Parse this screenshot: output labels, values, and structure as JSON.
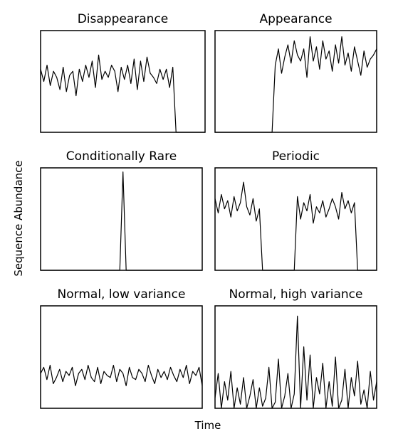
{
  "figure": {
    "xlabel": "Time",
    "ylabel": "Sequence Abundance"
  },
  "chart_data": [
    {
      "type": "line",
      "title": "Disappearance",
      "xlabel": "",
      "ylabel": "",
      "xlim": [
        0,
        51
      ],
      "ylim": [
        0,
        1
      ],
      "series": [
        {
          "values": [
            0.62,
            0.5,
            0.66,
            0.46,
            0.6,
            0.54,
            0.42,
            0.64,
            0.4,
            0.56,
            0.6,
            0.36,
            0.62,
            0.5,
            0.66,
            0.54,
            0.7,
            0.44,
            0.76,
            0.52,
            0.6,
            0.54,
            0.66,
            0.6,
            0.4,
            0.64,
            0.52,
            0.66,
            0.48,
            0.72,
            0.42,
            0.7,
            0.5,
            0.74,
            0.58,
            0.54,
            0.48,
            0.62,
            0.52,
            0.62,
            0.44,
            0.64,
            0,
            0,
            0,
            0,
            0,
            0,
            0,
            0,
            0,
            0
          ]
        }
      ]
    },
    {
      "type": "line",
      "title": "Appearance",
      "xlabel": "",
      "ylabel": "",
      "xlim": [
        0,
        51
      ],
      "ylim": [
        0,
        1
      ],
      "series": [
        {
          "values": [
            0,
            0,
            0,
            0,
            0,
            0,
            0,
            0,
            0,
            0,
            0,
            0,
            0,
            0,
            0,
            0,
            0,
            0,
            0,
            0.66,
            0.82,
            0.58,
            0.74,
            0.86,
            0.68,
            0.9,
            0.76,
            0.7,
            0.82,
            0.54,
            0.94,
            0.7,
            0.84,
            0.62,
            0.9,
            0.72,
            0.8,
            0.6,
            0.86,
            0.68,
            0.94,
            0.66,
            0.78,
            0.6,
            0.84,
            0.7,
            0.56,
            0.8,
            0.64,
            0.72,
            0.76,
            0.82
          ]
        }
      ]
    },
    {
      "type": "line",
      "title": "Conditionally Rare",
      "xlabel": "",
      "ylabel": "",
      "xlim": [
        0,
        51
      ],
      "ylim": [
        0,
        1
      ],
      "series": [
        {
          "values": [
            0,
            0,
            0,
            0,
            0,
            0,
            0,
            0,
            0,
            0,
            0,
            0,
            0,
            0,
            0,
            0,
            0,
            0,
            0,
            0,
            0,
            0,
            0,
            0,
            0,
            0,
            0.96,
            0,
            0,
            0,
            0,
            0,
            0,
            0,
            0,
            0,
            0,
            0,
            0,
            0,
            0,
            0,
            0,
            0,
            0,
            0,
            0,
            0,
            0,
            0,
            0,
            0
          ]
        }
      ]
    },
    {
      "type": "line",
      "title": "Periodic",
      "xlabel": "",
      "ylabel": "",
      "xlim": [
        0,
        51
      ],
      "ylim": [
        0,
        1
      ],
      "series": [
        {
          "values": [
            0.7,
            0.56,
            0.74,
            0.6,
            0.68,
            0.52,
            0.72,
            0.58,
            0.66,
            0.86,
            0.62,
            0.54,
            0.7,
            0.48,
            0.6,
            0,
            0,
            0,
            0,
            0,
            0,
            0,
            0,
            0,
            0,
            0,
            0.72,
            0.5,
            0.66,
            0.58,
            0.74,
            0.46,
            0.62,
            0.56,
            0.68,
            0.52,
            0.6,
            0.7,
            0.62,
            0.5,
            0.76,
            0.6,
            0.68,
            0.56,
            0.66,
            0,
            0,
            0,
            0,
            0,
            0,
            0
          ]
        }
      ]
    },
    {
      "type": "line",
      "title": "Normal, low variance",
      "xlabel": "",
      "ylabel": "",
      "xlim": [
        0,
        51
      ],
      "ylim": [
        0,
        1
      ],
      "series": [
        {
          "values": [
            0.34,
            0.4,
            0.28,
            0.42,
            0.24,
            0.3,
            0.38,
            0.26,
            0.36,
            0.32,
            0.4,
            0.22,
            0.34,
            0.38,
            0.28,
            0.42,
            0.3,
            0.26,
            0.4,
            0.24,
            0.36,
            0.32,
            0.3,
            0.42,
            0.26,
            0.38,
            0.34,
            0.22,
            0.4,
            0.3,
            0.28,
            0.38,
            0.34,
            0.26,
            0.42,
            0.32,
            0.24,
            0.38,
            0.3,
            0.36,
            0.28,
            0.4,
            0.32,
            0.26,
            0.38,
            0.3,
            0.42,
            0.24,
            0.36,
            0.32,
            0.4,
            0.22
          ]
        }
      ]
    },
    {
      "type": "line",
      "title": "Normal, high variance",
      "xlabel": "",
      "ylabel": "",
      "xlim": [
        0,
        51
      ],
      "ylim": [
        0,
        1
      ],
      "series": [
        {
          "values": [
            0.1,
            0.34,
            0,
            0.26,
            0.08,
            0.36,
            0,
            0.2,
            0.04,
            0.3,
            0,
            0.12,
            0.28,
            0,
            0.2,
            0.02,
            0.1,
            0.4,
            0,
            0.06,
            0.48,
            0,
            0.12,
            0.34,
            0,
            0.14,
            0.9,
            0,
            0.6,
            0.08,
            0.52,
            0,
            0.3,
            0.14,
            0.44,
            0,
            0.26,
            0.02,
            0.5,
            0,
            0.08,
            0.38,
            0,
            0.3,
            0.12,
            0.46,
            0.04,
            0.18,
            0,
            0.36,
            0.08,
            0.26
          ]
        }
      ]
    }
  ]
}
